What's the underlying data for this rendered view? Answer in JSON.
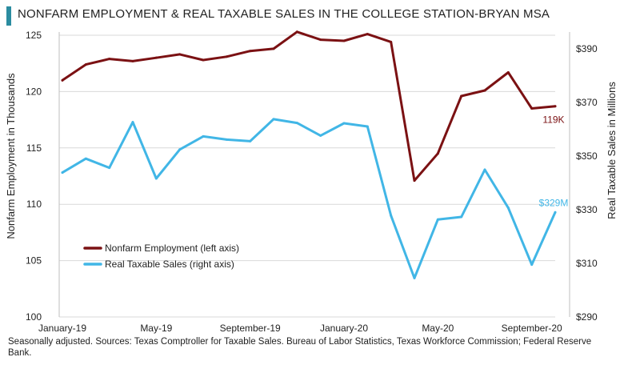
{
  "title": "NONFARM EMPLOYMENT & REAL TAXABLE SALES IN THE COLLEGE STATION-BRYAN MSA",
  "source_note": "Seasonally adjusted.  Sources: Texas Comptroller for Taxable Sales. Bureau of Labor Statistics, Texas Workforce Commission; Federal Reserve Bank.",
  "colors": {
    "employment": "#7b1113",
    "sales": "#41b6e6",
    "title_accent": "#2b8ca0"
  },
  "chart_data": {
    "type": "line",
    "title": "NONFARM EMPLOYMENT & REAL TAXABLE SALES IN THE COLLEGE STATION-BRYAN MSA",
    "ylabel_left": "Nonfarm Employment in Thousands",
    "ylabel_right": "Real Taxable Sales in Millions",
    "left_axis": {
      "min": 100,
      "max": 125,
      "ticks": [
        100,
        105,
        110,
        115,
        120,
        125
      ]
    },
    "right_axis": {
      "min": 290,
      "max": 395,
      "ticks": [
        290,
        310,
        330,
        350,
        370,
        390
      ],
      "tick_labels": [
        "$290",
        "$310",
        "$330",
        "$350",
        "$370",
        "$390"
      ]
    },
    "x_labels": [
      {
        "index": 0,
        "label": "January-19"
      },
      {
        "index": 4,
        "label": "May-19"
      },
      {
        "index": 8,
        "label": "September-19"
      },
      {
        "index": 12,
        "label": "January-20"
      },
      {
        "index": 16,
        "label": "May-20"
      },
      {
        "index": 20,
        "label": "September-20"
      }
    ],
    "categories": [
      "Jan-19",
      "Feb-19",
      "Mar-19",
      "Apr-19",
      "May-19",
      "Jun-19",
      "Jul-19",
      "Aug-19",
      "Sep-19",
      "Oct-19",
      "Nov-19",
      "Dec-19",
      "Jan-20",
      "Feb-20",
      "Mar-20",
      "Apr-20",
      "May-20",
      "Jun-20",
      "Jul-20",
      "Aug-20",
      "Sep-20",
      "Oct-20"
    ],
    "series": [
      {
        "name": "Nonfarm Employment (left axis)",
        "axis": "left",
        "values": [
          121.0,
          122.4,
          122.9,
          122.7,
          123.0,
          123.3,
          122.8,
          123.1,
          123.6,
          123.8,
          125.3,
          124.6,
          124.5,
          125.1,
          124.4,
          112.1,
          114.5,
          119.6,
          120.1,
          121.7,
          118.5,
          118.7
        ],
        "end_label": "119K"
      },
      {
        "name": "Real Taxable Sales (right axis)",
        "axis": "right",
        "values": [
          343.8,
          349.0,
          345.6,
          362.6,
          341.6,
          352.4,
          357.3,
          356.1,
          355.5,
          363.7,
          362.3,
          357.6,
          362.2,
          361.0,
          327.8,
          304.5,
          326.3,
          327.3,
          344.9,
          330.7,
          309.5,
          329.0
        ],
        "end_label": "$329M"
      }
    ],
    "legend": [
      "Nonfarm Employment (left axis)",
      "Real Taxable Sales (right axis)"
    ],
    "legend_position": "lower-left"
  }
}
